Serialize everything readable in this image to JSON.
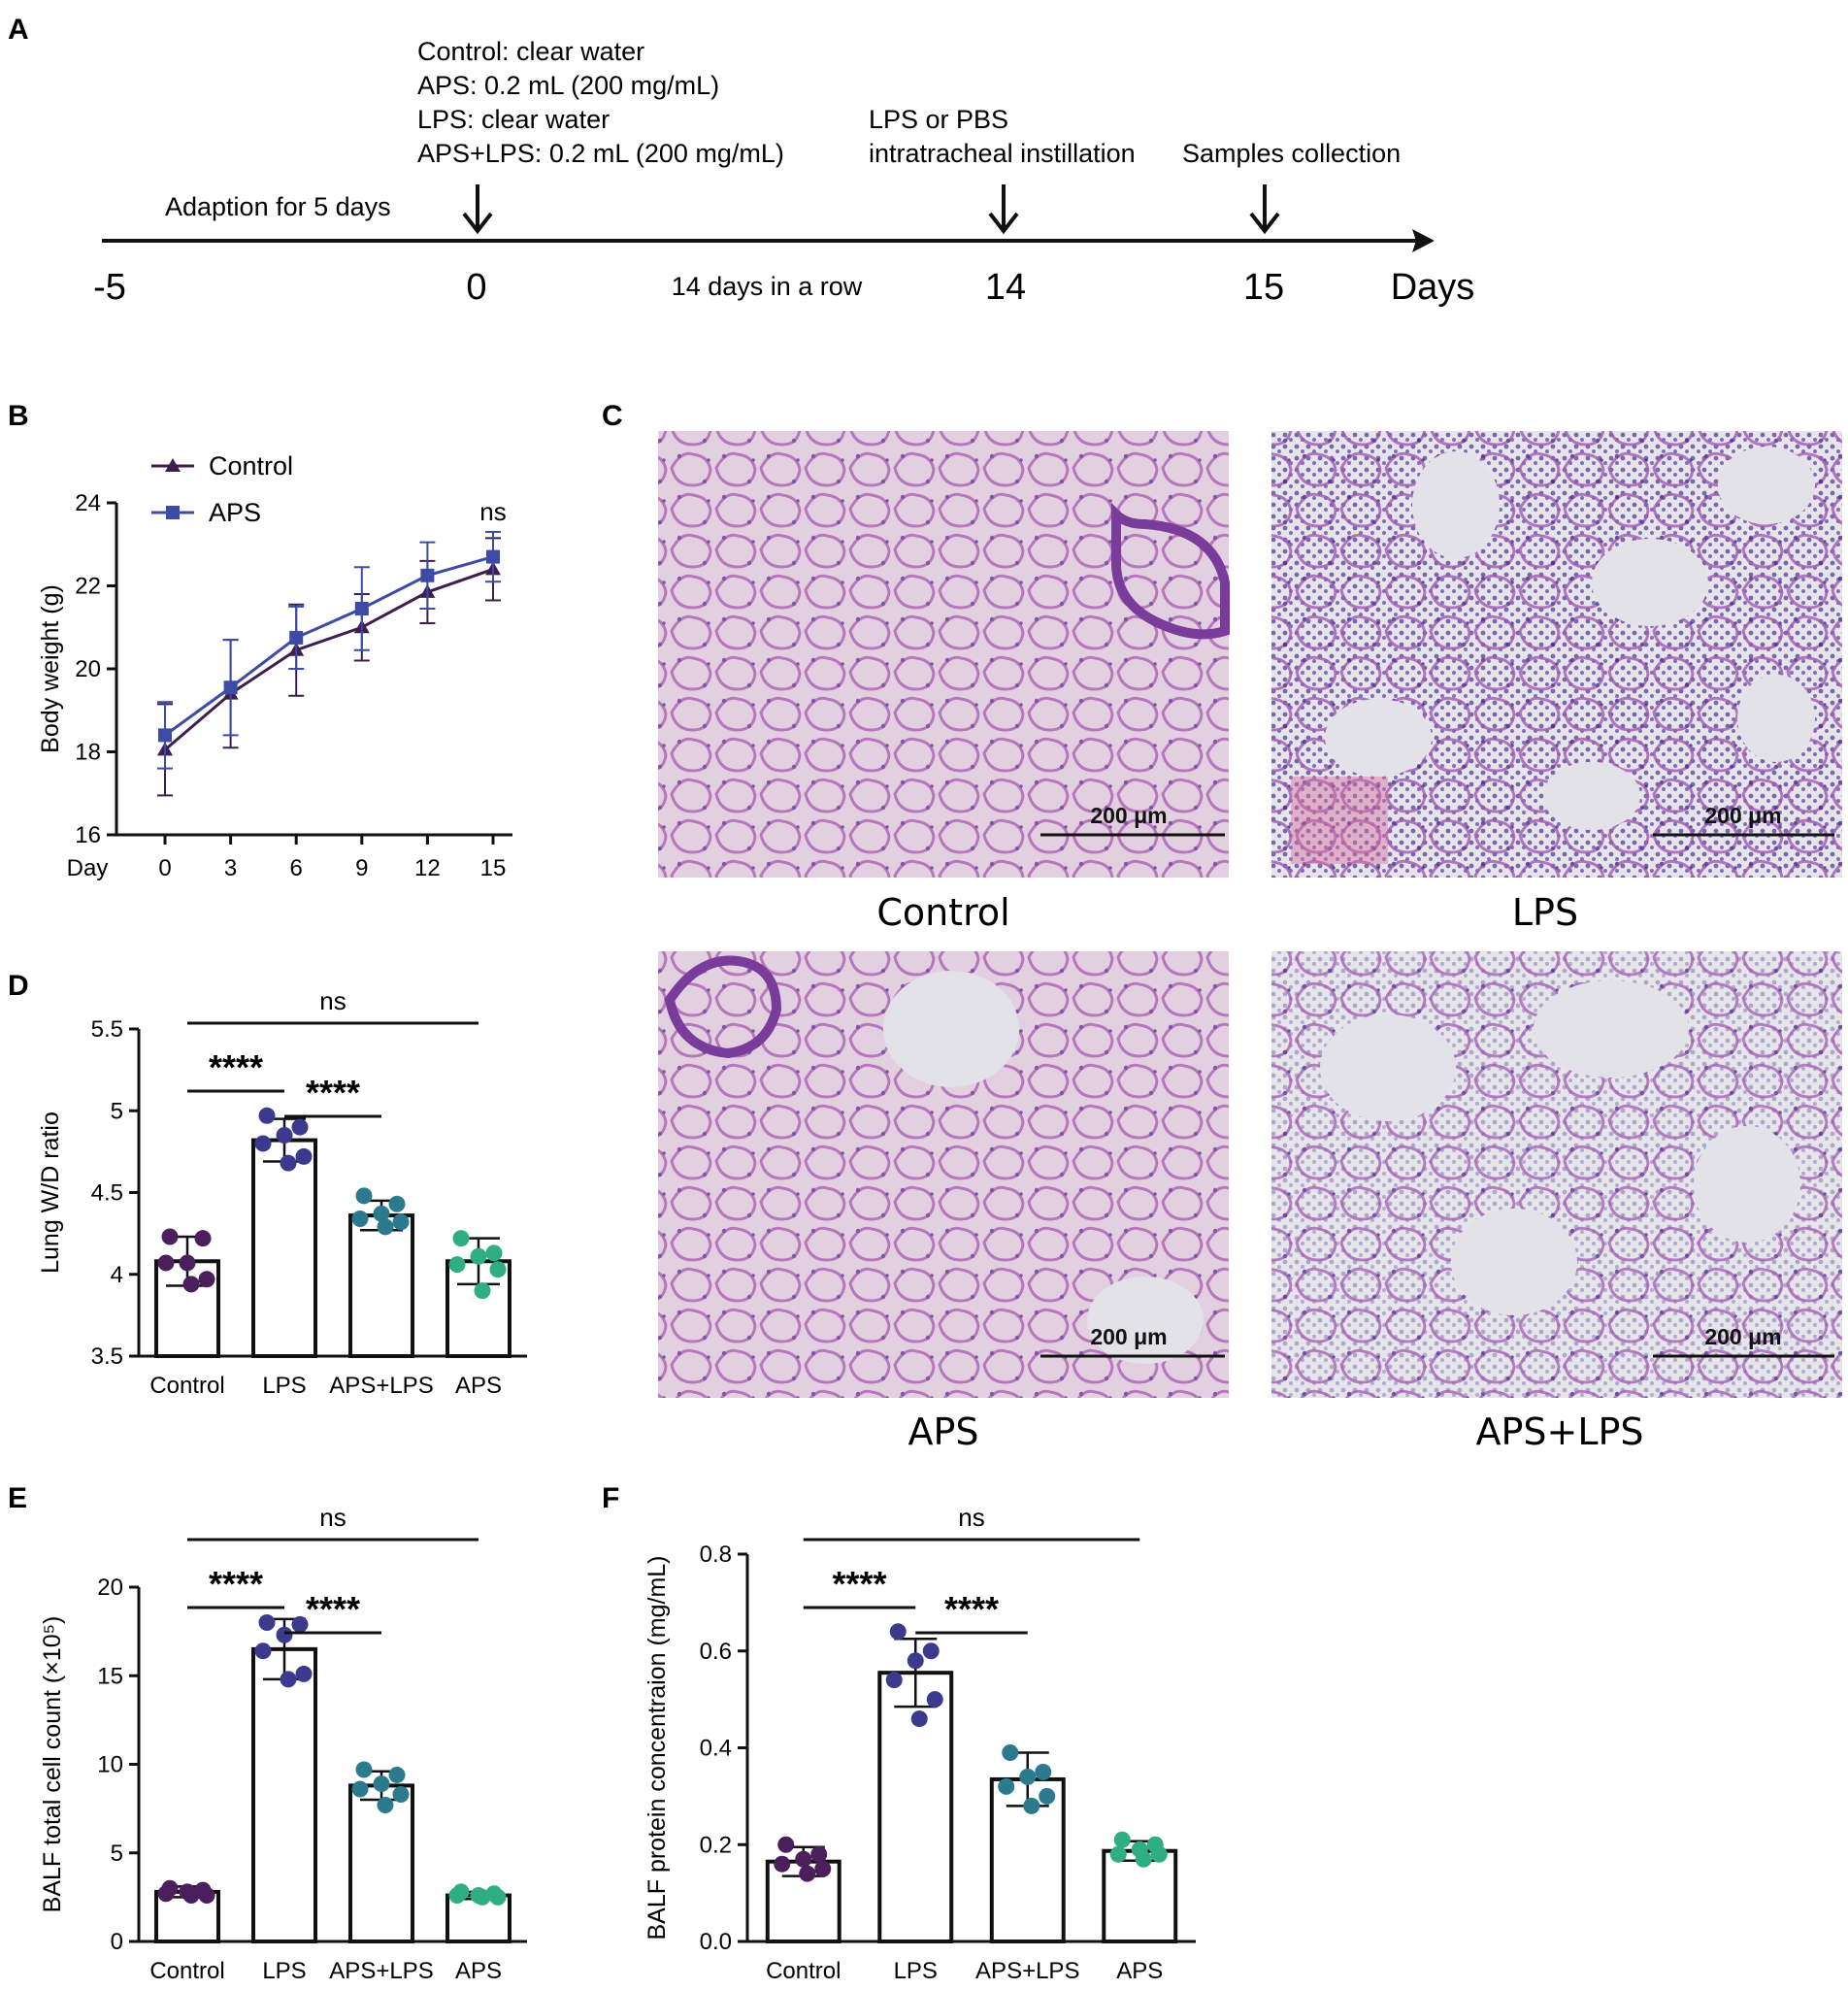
{
  "panels": {
    "A": "A",
    "B": "B",
    "C": "C",
    "D": "D",
    "E": "E",
    "F": "F"
  },
  "timeline": {
    "treatment_lines": [
      "Control: clear water",
      "APS: 0.2 mL (200 mg/mL)",
      "LPS: clear water",
      "APS+LPS: 0.2 mL (200 mg/mL)"
    ],
    "adaption": "Adaption for 5 days",
    "instill_lines": [
      "LPS or PBS",
      "intratracheal  instillation"
    ],
    "collection": "Samples collection",
    "between": "14 days in a row",
    "ticks": [
      "-5",
      "0",
      "14",
      "15"
    ],
    "unit": "Days"
  },
  "micrographs": {
    "scale_label": "200 μm",
    "captions": [
      "Control",
      "LPS",
      "APS",
      "APS+LPS"
    ]
  },
  "colors": {
    "control_line": "#3d1f4f",
    "aps_line": "#3b4ba6",
    "control_dot": "#4b1f5c",
    "lps_dot": "#3b3a8f",
    "apslps_dot": "#2b7a8e",
    "aps_dot": "#2fae84",
    "tissue_bg": "#e6e6ea",
    "tissue_pink": "#d88fc4",
    "tissue_purple": "#6a3ea1"
  },
  "chart_data": [
    {
      "id": "B",
      "type": "line",
      "title": "",
      "xlabel": "Day",
      "ylabel": "Body weight (g)",
      "x": [
        0,
        3,
        6,
        9,
        12,
        15
      ],
      "ylim": [
        16,
        24
      ],
      "yticks": [
        16,
        18,
        20,
        22,
        24
      ],
      "series": [
        {
          "name": "Control",
          "marker": "triangle",
          "values": [
            18.05,
            19.4,
            20.45,
            21.0,
            21.85,
            22.4
          ],
          "err": [
            1.1,
            1.3,
            1.1,
            0.8,
            0.75,
            0.75
          ]
        },
        {
          "name": "APS",
          "marker": "square",
          "values": [
            18.4,
            19.55,
            20.75,
            21.45,
            22.25,
            22.7
          ],
          "err": [
            0.8,
            1.15,
            0.75,
            1.0,
            0.8,
            0.6
          ]
        }
      ],
      "legend": "top-left",
      "annotation": "ns"
    },
    {
      "id": "D",
      "type": "bar",
      "title": "",
      "xlabel": "",
      "ylabel": "Lung W/D ratio",
      "categories": [
        "Control",
        "LPS",
        "APS+LPS",
        "APS"
      ],
      "values": [
        4.08,
        4.82,
        4.36,
        4.08
      ],
      "err": [
        0.15,
        0.13,
        0.09,
        0.14
      ],
      "points": [
        [
          4.23,
          4.22,
          4.07,
          4.07,
          3.97,
          3.94
        ],
        [
          4.97,
          4.9,
          4.85,
          4.8,
          4.72,
          4.68
        ],
        [
          4.48,
          4.43,
          4.37,
          4.34,
          4.32,
          4.29
        ],
        [
          4.22,
          4.13,
          4.11,
          4.06,
          4.03,
          3.9
        ]
      ],
      "ylim": [
        3.5,
        5.5
      ],
      "yticks": [
        3.5,
        4.0,
        4.5,
        5.0,
        5.5
      ],
      "significance": [
        {
          "from": 0,
          "to": 1,
          "label": "****"
        },
        {
          "from": 1,
          "to": 2,
          "label": "****"
        },
        {
          "from": 0,
          "to": 3,
          "label": "ns"
        }
      ]
    },
    {
      "id": "E",
      "type": "bar",
      "title": "",
      "xlabel": "",
      "ylabel": "BALF total cell count (×10⁵)",
      "categories": [
        "Control",
        "LPS",
        "APS+LPS",
        "APS"
      ],
      "values": [
        2.8,
        16.5,
        8.8,
        2.6
      ],
      "err": [
        0.3,
        1.7,
        0.8,
        0.2
      ],
      "points": [
        [
          3.0,
          2.9,
          2.8,
          2.7,
          2.6,
          2.6
        ],
        [
          18.0,
          17.9,
          17.3,
          16.4,
          15.1,
          14.8
        ],
        [
          9.7,
          9.4,
          8.9,
          8.6,
          8.3,
          7.7
        ],
        [
          2.8,
          2.7,
          2.6,
          2.6,
          2.5,
          2.5
        ]
      ],
      "ylim": [
        0,
        20
      ],
      "yticks": [
        0,
        5,
        10,
        15,
        20
      ],
      "significance": [
        {
          "from": 0,
          "to": 1,
          "label": "****"
        },
        {
          "from": 1,
          "to": 2,
          "label": "****"
        },
        {
          "from": 0,
          "to": 3,
          "label": "ns"
        }
      ]
    },
    {
      "id": "F",
      "type": "bar",
      "title": "",
      "xlabel": "",
      "ylabel": "BALF protein concentraion (mg/mL)",
      "categories": [
        "Control",
        "LPS",
        "APS+LPS",
        "APS"
      ],
      "values": [
        0.165,
        0.555,
        0.335,
        0.187
      ],
      "err": [
        0.03,
        0.07,
        0.055,
        0.02
      ],
      "points": [
        [
          0.2,
          0.18,
          0.17,
          0.16,
          0.15,
          0.14
        ],
        [
          0.64,
          0.6,
          0.58,
          0.54,
          0.5,
          0.46
        ],
        [
          0.39,
          0.35,
          0.34,
          0.32,
          0.3,
          0.28
        ],
        [
          0.21,
          0.2,
          0.19,
          0.18,
          0.18,
          0.17
        ]
      ],
      "ylim": [
        0,
        0.8
      ],
      "yticks": [
        0.0,
        0.2,
        0.4,
        0.6,
        0.8
      ],
      "significance": [
        {
          "from": 0,
          "to": 1,
          "label": "****"
        },
        {
          "from": 1,
          "to": 2,
          "label": "****"
        },
        {
          "from": 0,
          "to": 3,
          "label": "ns"
        }
      ]
    }
  ]
}
